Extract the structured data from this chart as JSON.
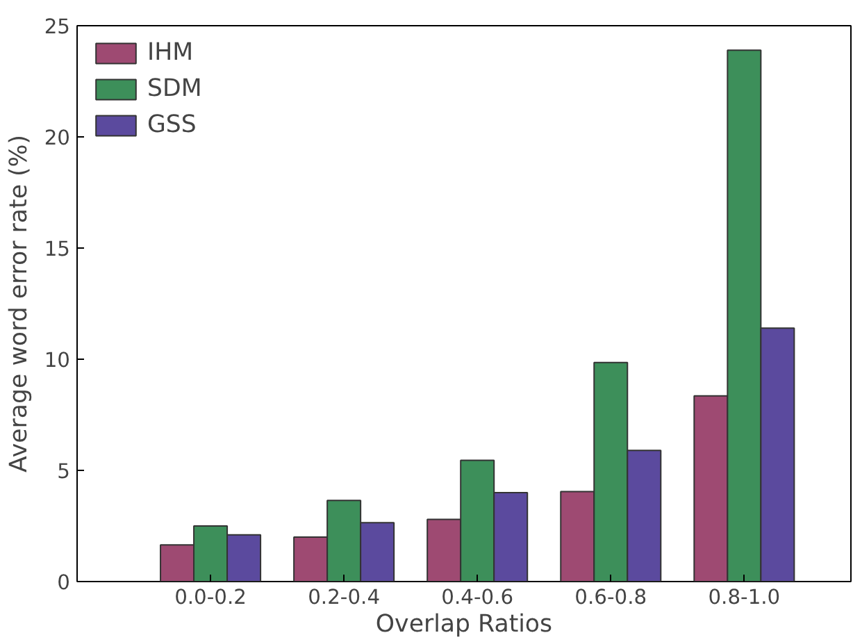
{
  "chart_data": {
    "type": "bar",
    "xlabel": "Overlap Ratios",
    "ylabel": "Average word error rate (%)",
    "categories": [
      "0.0-0.2",
      "0.2-0.4",
      "0.4-0.6",
      "0.6-0.8",
      "0.8-1.0"
    ],
    "series": [
      {
        "name": "IHM",
        "color": "#9e4a72",
        "values": [
          1.65,
          2.0,
          2.8,
          4.05,
          8.35
        ]
      },
      {
        "name": "SDM",
        "color": "#3d8f5a",
        "values": [
          2.5,
          3.65,
          5.45,
          9.85,
          23.9
        ]
      },
      {
        "name": "GSS",
        "color": "#5b4a9e",
        "values": [
          2.1,
          2.65,
          4.0,
          5.9,
          11.4
        ]
      }
    ],
    "ylim": [
      0,
      25
    ],
    "yticks": [
      0,
      5,
      10,
      15,
      20,
      25
    ],
    "grid": false,
    "legend": "top left"
  }
}
